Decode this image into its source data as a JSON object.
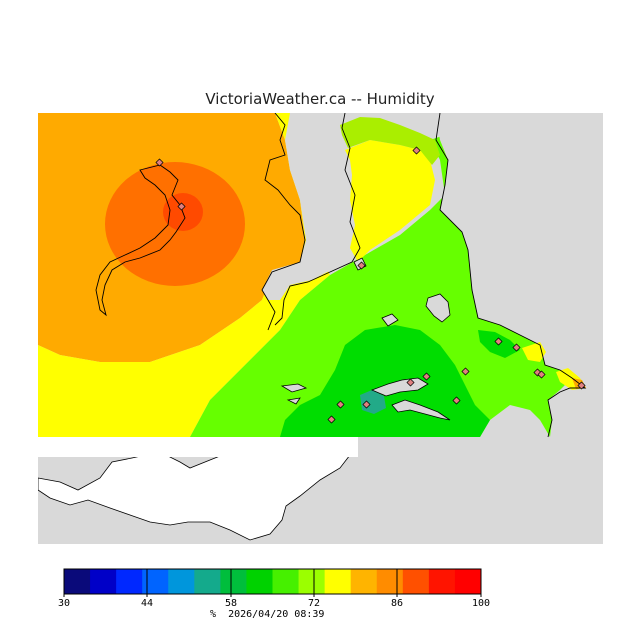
{
  "title": "VictoriaWeather.ca -- Humidity",
  "legend": {
    "ticks": [
      "30",
      "44",
      "58",
      "72",
      "86",
      "100"
    ],
    "units": "%",
    "timestamp": "2026/04/20 08:39",
    "colors": [
      "#0a0a7a",
      "#0000c8",
      "#0028ff",
      "#0064ff",
      "#0096dc",
      "#14aa8c",
      "#00be3c",
      "#00d200",
      "#46f000",
      "#9bff00",
      "#ffff00",
      "#ffb400",
      "#ff8c00",
      "#ff5000",
      "#ff1400",
      "#ff0000"
    ]
  },
  "map": {
    "colors": {
      "ocean": "#d9d9d9",
      "land_blank": "#ffffff",
      "orange": "#ffaa00",
      "dark_orange": "#ff7000",
      "red_orange": "#ff4a00",
      "yellow": "#ffff00",
      "yellow_green": "#aaee00",
      "light_green": "#66ff00",
      "green": "#00dd00",
      "teal": "#22aa88"
    },
    "stations": 16
  }
}
